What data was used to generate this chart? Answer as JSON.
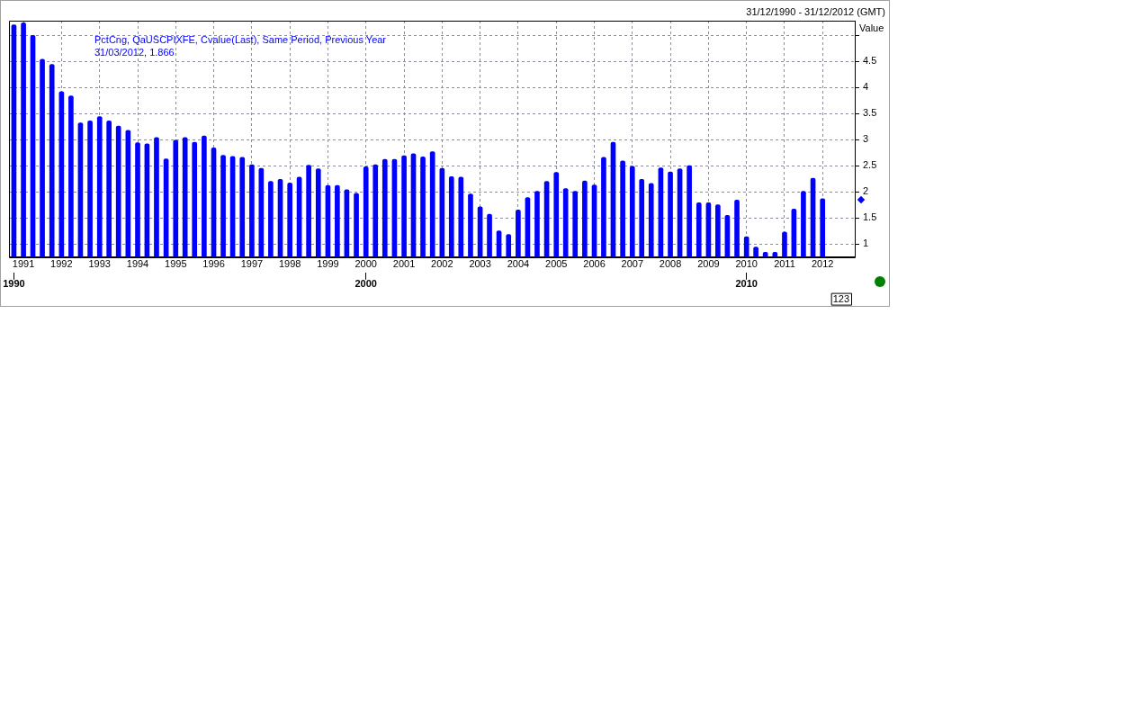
{
  "chart_data": {
    "type": "bar",
    "subtitle": "31/12/1990 - 31/12/2012 (GMT)",
    "ylabel": "Value",
    "x": [
      "1990-10",
      "1991-01",
      "1991-04",
      "1991-07",
      "1991-10",
      "1992-01",
      "1992-04",
      "1992-07",
      "1992-10",
      "1993-01",
      "1993-04",
      "1993-07",
      "1993-10",
      "1994-01",
      "1994-04",
      "1994-07",
      "1994-10",
      "1995-01",
      "1995-04",
      "1995-07",
      "1995-10",
      "1996-01",
      "1996-04",
      "1996-07",
      "1996-10",
      "1997-01",
      "1997-04",
      "1997-07",
      "1997-10",
      "1998-01",
      "1998-04",
      "1998-07",
      "1998-10",
      "1999-01",
      "1999-04",
      "1999-07",
      "1999-10",
      "2000-01",
      "2000-04",
      "2000-07",
      "2000-10",
      "2001-01",
      "2001-04",
      "2001-07",
      "2001-10",
      "2002-01",
      "2002-04",
      "2002-07",
      "2002-10",
      "2003-01",
      "2003-04",
      "2003-07",
      "2003-10",
      "2004-01",
      "2004-04",
      "2004-07",
      "2004-10",
      "2005-01",
      "2005-04",
      "2005-07",
      "2005-10",
      "2006-01",
      "2006-04",
      "2006-07",
      "2006-10",
      "2007-01",
      "2007-04",
      "2007-07",
      "2007-10",
      "2008-01",
      "2008-04",
      "2008-07",
      "2008-10",
      "2009-01",
      "2009-04",
      "2009-07",
      "2009-10",
      "2010-01",
      "2010-04",
      "2010-07",
      "2010-10",
      "2011-01",
      "2011-04",
      "2011-07",
      "2011-10",
      "2012-01"
    ],
    "series": [
      {
        "name": "PctCng, QaUSCPIXFE, Cvalue(Last), Same Period, Previous Year",
        "color": "#0000ff",
        "values": [
          5.2,
          5.24,
          5.0,
          4.54,
          4.44,
          3.92,
          3.84,
          3.32,
          3.36,
          3.44,
          3.36,
          3.26,
          3.18,
          2.94,
          2.92,
          3.04,
          2.63,
          2.99,
          3.04,
          2.95,
          3.07,
          2.84,
          2.7,
          2.68,
          2.66,
          2.52,
          2.45,
          2.2,
          2.24,
          2.17,
          2.28,
          2.51,
          2.44,
          2.12,
          2.12,
          2.04,
          1.97,
          2.48,
          2.52,
          2.62,
          2.62,
          2.69,
          2.73,
          2.67,
          2.77,
          2.45,
          2.29,
          2.28,
          1.96,
          1.71,
          1.57,
          1.25,
          1.18,
          1.65,
          1.89,
          2.01,
          2.2,
          2.37,
          2.06,
          2.01,
          2.21,
          2.13,
          2.66,
          2.95,
          2.59,
          2.49,
          2.24,
          2.16,
          2.46,
          2.38,
          2.44,
          2.5,
          1.79,
          1.79,
          1.75,
          1.55,
          1.84,
          1.14,
          0.94,
          0.84,
          0.84,
          1.23,
          1.67,
          2.01,
          2.26,
          1.866
        ]
      }
    ],
    "xlim": [
      "1990-08-15",
      "2012-11-05"
    ],
    "xticks": [
      {
        "value": "1991-01",
        "label": "1991"
      },
      {
        "value": "1992-01",
        "label": "1992"
      },
      {
        "value": "1993-01",
        "label": "1993"
      },
      {
        "value": "1994-01",
        "label": "1994"
      },
      {
        "value": "1995-01",
        "label": "1995"
      },
      {
        "value": "1996-01",
        "label": "1996"
      },
      {
        "value": "1997-01",
        "label": "1997"
      },
      {
        "value": "1998-01",
        "label": "1998"
      },
      {
        "value": "1999-01",
        "label": "1999"
      },
      {
        "value": "2000-01",
        "label": "2000"
      },
      {
        "value": "2001-01",
        "label": "2001"
      },
      {
        "value": "2002-01",
        "label": "2002"
      },
      {
        "value": "2003-01",
        "label": "2003"
      },
      {
        "value": "2004-01",
        "label": "2004"
      },
      {
        "value": "2005-01",
        "label": "2005"
      },
      {
        "value": "2006-01",
        "label": "2006"
      },
      {
        "value": "2007-01",
        "label": "2007"
      },
      {
        "value": "2008-01",
        "label": "2008"
      },
      {
        "value": "2009-01",
        "label": "2009"
      },
      {
        "value": "2010-01",
        "label": "2010"
      },
      {
        "value": "2011-01",
        "label": "2011"
      },
      {
        "value": "2012-01",
        "label": "2012"
      }
    ],
    "x2lim": [
      "1990-08-15",
      "2012-11-05"
    ],
    "x2ticks": [
      {
        "value": "1990-10",
        "label": "1990"
      },
      {
        "value": "2000-01",
        "label": "2000"
      },
      {
        "value": "2010-01",
        "label": "2010"
      }
    ],
    "ylim": [
      0.75,
      5.28
    ],
    "yticks": [
      1,
      1.5,
      2,
      2.5,
      3,
      3.5,
      4,
      4.5,
      {
        "value": 5,
        "label": null
      }
    ],
    "annotations": [
      "31/03/2012, 1.866",
      "123"
    ],
    "grid": true,
    "legend": "top left"
  }
}
